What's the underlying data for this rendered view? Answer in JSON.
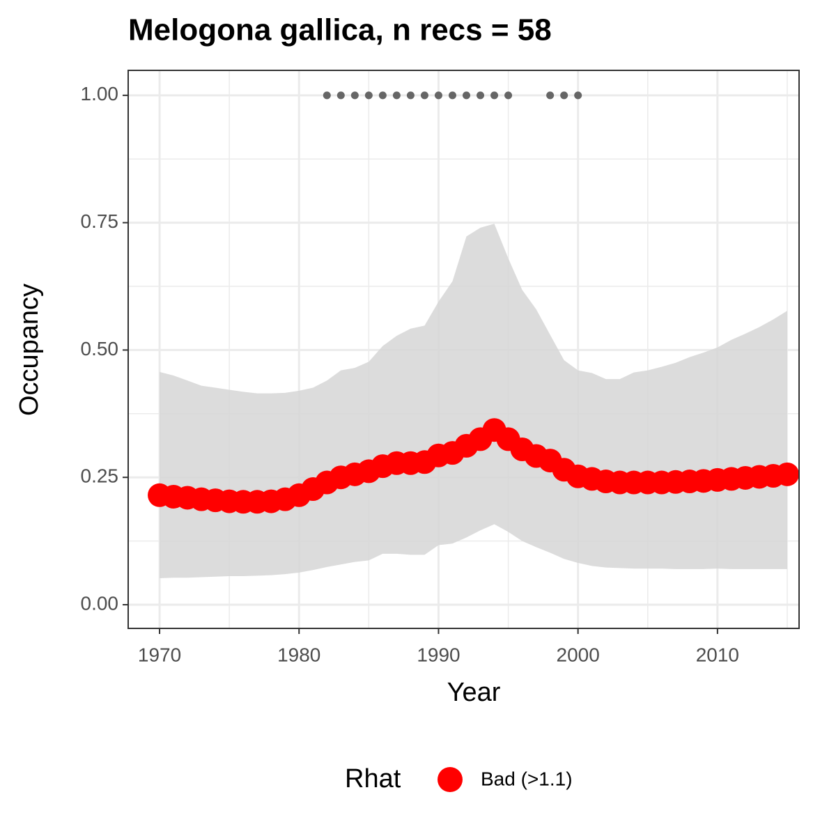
{
  "chart_data": {
    "type": "line",
    "title": "Melogona gallica, n recs = 58",
    "x_label": "Year",
    "y_label": "Occupancy",
    "legend_title": "Rhat",
    "x": [
      1970,
      1971,
      1972,
      1973,
      1974,
      1975,
      1976,
      1977,
      1978,
      1979,
      1980,
      1981,
      1982,
      1983,
      1984,
      1985,
      1986,
      1987,
      1988,
      1989,
      1990,
      1991,
      1992,
      1993,
      1994,
      1995,
      1996,
      1997,
      1998,
      1999,
      2000,
      2001,
      2002,
      2003,
      2004,
      2005,
      2006,
      2007,
      2008,
      2009,
      2010,
      2011,
      2012,
      2013,
      2014,
      2015
    ],
    "series": [
      {
        "name": "Bad (>1.1)",
        "color": "#ff0000",
        "values": [
          0.215,
          0.212,
          0.21,
          0.207,
          0.205,
          0.203,
          0.202,
          0.202,
          0.203,
          0.207,
          0.215,
          0.227,
          0.24,
          0.25,
          0.256,
          0.262,
          0.272,
          0.278,
          0.278,
          0.28,
          0.293,
          0.298,
          0.312,
          0.325,
          0.343,
          0.325,
          0.305,
          0.292,
          0.283,
          0.265,
          0.252,
          0.247,
          0.242,
          0.24,
          0.24,
          0.24,
          0.24,
          0.241,
          0.242,
          0.243,
          0.245,
          0.247,
          0.249,
          0.251,
          0.253,
          0.256
        ]
      }
    ],
    "band_upper": [
      0.457,
      0.45,
      0.44,
      0.43,
      0.426,
      0.422,
      0.418,
      0.415,
      0.415,
      0.416,
      0.42,
      0.426,
      0.44,
      0.46,
      0.465,
      0.477,
      0.508,
      0.528,
      0.542,
      0.548,
      0.595,
      0.635,
      0.723,
      0.74,
      0.748,
      0.68,
      0.618,
      0.58,
      0.53,
      0.48,
      0.46,
      0.455,
      0.443,
      0.443,
      0.456,
      0.46,
      0.467,
      0.475,
      0.486,
      0.495,
      0.505,
      0.52,
      0.532,
      0.545,
      0.56,
      0.577
    ],
    "band_lower": [
      0.052,
      0.053,
      0.053,
      0.054,
      0.055,
      0.056,
      0.056,
      0.057,
      0.058,
      0.06,
      0.063,
      0.068,
      0.074,
      0.079,
      0.084,
      0.087,
      0.1,
      0.1,
      0.098,
      0.098,
      0.117,
      0.12,
      0.132,
      0.146,
      0.158,
      0.143,
      0.125,
      0.113,
      0.102,
      0.09,
      0.082,
      0.076,
      0.073,
      0.072,
      0.071,
      0.071,
      0.071,
      0.07,
      0.07,
      0.07,
      0.071,
      0.07,
      0.07,
      0.07,
      0.07,
      0.07
    ],
    "band_color": "#d6d6d6",
    "record_years": {
      "x": [
        1982,
        1983,
        1984,
        1985,
        1986,
        1987,
        1988,
        1989,
        1990,
        1991,
        1992,
        1993,
        1994,
        1995,
        1998,
        1999,
        2000
      ],
      "values": [
        1,
        1,
        1,
        1,
        1,
        1,
        1,
        1,
        1,
        1,
        1,
        1,
        1,
        1,
        1,
        1,
        1
      ],
      "color": "#666666"
    },
    "xlim": [
      1967.75,
      2015.85
    ],
    "ylim": [
      -0.0465,
      1.049
    ],
    "xticks": [
      1970,
      1980,
      1990,
      2000,
      2010
    ],
    "yticks": [
      {
        "value": 0,
        "label": "0.00"
      },
      {
        "value": 0.25,
        "label": "0.25"
      },
      {
        "value": 0.5,
        "label": "0.50"
      },
      {
        "value": 0.75,
        "label": "0.75"
      },
      {
        "value": 1,
        "label": "1.00"
      }
    ],
    "xticks_minor": [
      1975,
      1985,
      1995,
      2005,
      2015
    ],
    "yticks_minor": [
      0.125,
      0.375,
      0.625,
      0.875
    ],
    "grid": true
  }
}
